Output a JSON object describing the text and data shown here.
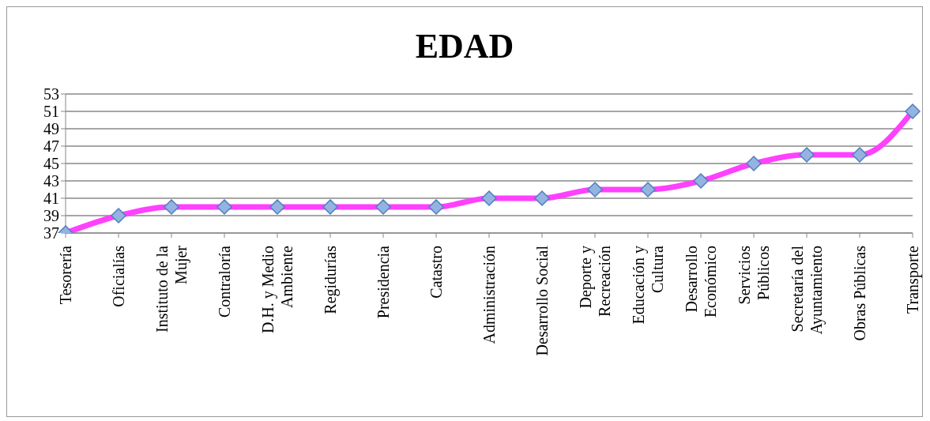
{
  "chart_data": {
    "type": "line",
    "title": "EDAD",
    "categories": [
      "Tesorería",
      "Oficialías",
      "Instituto de la Mujer",
      "Contraloría",
      "D.H. y Medio Ambiente",
      "Regidurías",
      "Presidencia",
      "Catastro",
      "Administración",
      "Desarrollo Social",
      "Deporte y Recreación",
      "Educación y Cultura",
      "Desarrollo Económico",
      "Servicios Públicos",
      "Secretaría del Ayuntamiento",
      "Obras Públicas",
      "Transporte"
    ],
    "series": [
      {
        "color": "#ff40ff",
        "values": [
          37,
          39,
          40,
          40,
          40,
          40,
          40,
          40,
          41,
          41,
          42,
          42,
          43,
          45,
          46,
          46,
          51
        ]
      }
    ],
    "ylim": [
      37,
      53
    ],
    "yticks": [
      37,
      39,
      41,
      43,
      45,
      47,
      49,
      51,
      53
    ],
    "grid": "y",
    "legend": false,
    "marker": "diamond",
    "line_style": "solid"
  }
}
